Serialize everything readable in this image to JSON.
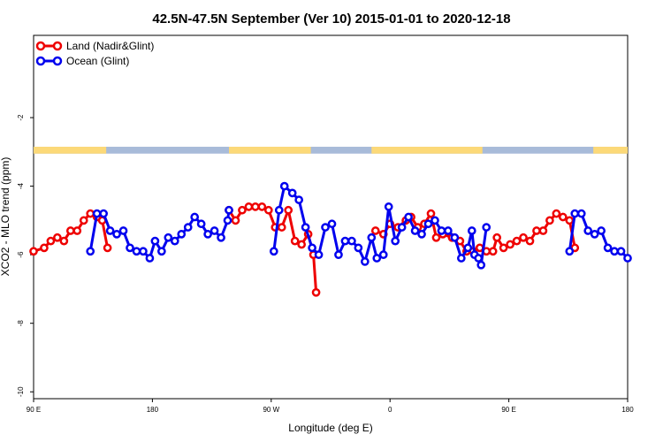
{
  "chart_data": {
    "type": "line",
    "title": "42.5N-47.5N September (Ver 10)   2015-01-01 to 2020-12-18",
    "xlabel": "Longitude (deg E)",
    "ylabel": "XCO2 - MLO trend (ppm)",
    "x_ticks": [
      {
        "value": 90,
        "label": "90 E"
      },
      {
        "value": 180,
        "label": "180"
      },
      {
        "value": 270,
        "label": "90 W"
      },
      {
        "value": 360,
        "label": "0"
      },
      {
        "value": 450,
        "label": "90 E"
      },
      {
        "value": 540,
        "label": "180"
      }
    ],
    "y_ticks": [
      {
        "value": -2,
        "label": "-2"
      },
      {
        "value": -4,
        "label": "-4"
      },
      {
        "value": -6,
        "label": "-6"
      },
      {
        "value": -8,
        "label": "-8"
      },
      {
        "value": -10,
        "label": "-10"
      }
    ],
    "xlim": [
      90,
      540
    ],
    "ylim": [
      -10.2,
      0.4
    ],
    "grid": false,
    "legend_position": "top-left",
    "land_ocean_strip": {
      "y_range": [
        -2.85,
        -3.05
      ],
      "land_color": "#fcd978",
      "ocean_color": "#a8bbd9",
      "land_segments": [
        [
          90,
          145
        ],
        [
          238,
          300
        ],
        [
          346,
          430
        ],
        [
          514,
          540
        ]
      ]
    },
    "series": [
      {
        "name": "Land (Nadir&Glint)",
        "color": "#ee0000",
        "segments": [
          [
            [
              90,
              -5.9
            ],
            [
              98,
              -5.8
            ],
            [
              103,
              -5.6
            ],
            [
              108,
              -5.5
            ],
            [
              113,
              -5.6
            ],
            [
              118,
              -5.3
            ],
            [
              123,
              -5.3
            ],
            [
              128,
              -5.0
            ],
            [
              133,
              -4.8
            ],
            [
              138,
              -4.9
            ],
            [
              142,
              -5.0
            ],
            [
              146,
              -5.8
            ]
          ],
          [
            [
              238,
              -4.7
            ],
            [
              243,
              -5.0
            ],
            [
              248,
              -4.7
            ],
            [
              253,
              -4.6
            ],
            [
              258,
              -4.6
            ],
            [
              263,
              -4.6
            ],
            [
              268,
              -4.7
            ],
            [
              273,
              -5.2
            ],
            [
              278,
              -5.2
            ],
            [
              283,
              -4.7
            ],
            [
              288,
              -5.6
            ],
            [
              293,
              -5.7
            ],
            [
              298,
              -5.4
            ],
            [
              302,
              -6.0
            ],
            [
              304,
              -7.1
            ]
          ],
          [
            [
              349,
              -5.3
            ],
            [
              355,
              -5.4
            ],
            [
              360,
              -5.1
            ],
            [
              366,
              -5.2
            ],
            [
              372,
              -5.0
            ],
            [
              376,
              -4.9
            ],
            [
              381,
              -5.2
            ],
            [
              386,
              -5.1
            ],
            [
              391,
              -4.8
            ],
            [
              395,
              -5.5
            ],
            [
              400,
              -5.4
            ],
            [
              407,
              -5.5
            ],
            [
              413,
              -5.6
            ],
            [
              418,
              -5.9
            ],
            [
              423,
              -5.9
            ],
            [
              428,
              -5.8
            ],
            [
              433,
              -5.9
            ],
            [
              438,
              -5.9
            ],
            [
              441,
              -5.5
            ],
            [
              446,
              -5.8
            ],
            [
              451,
              -5.7
            ],
            [
              456,
              -5.6
            ],
            [
              461,
              -5.5
            ],
            [
              466,
              -5.6
            ],
            [
              471,
              -5.3
            ],
            [
              476,
              -5.3
            ],
            [
              481,
              -5.0
            ],
            [
              486,
              -4.8
            ],
            [
              491,
              -4.9
            ],
            [
              496,
              -5.0
            ],
            [
              500,
              -5.8
            ]
          ]
        ]
      },
      {
        "name": "Ocean (Glint)",
        "color": "#0000ee",
        "segments": [
          [
            [
              133,
              -5.9
            ],
            [
              138,
              -4.8
            ],
            [
              143,
              -4.8
            ],
            [
              148,
              -5.3
            ],
            [
              153,
              -5.4
            ],
            [
              158,
              -5.3
            ],
            [
              163,
              -5.8
            ],
            [
              168,
              -5.9
            ],
            [
              173,
              -5.9
            ],
            [
              178,
              -6.1
            ],
            [
              182,
              -5.6
            ],
            [
              187,
              -5.9
            ],
            [
              192,
              -5.5
            ],
            [
              197,
              -5.6
            ],
            [
              202,
              -5.4
            ],
            [
              207,
              -5.2
            ],
            [
              212,
              -4.9
            ],
            [
              217,
              -5.1
            ],
            [
              222,
              -5.4
            ],
            [
              227,
              -5.3
            ],
            [
              232,
              -5.5
            ],
            [
              237,
              -5.0
            ],
            [
              238,
              -4.7
            ]
          ],
          [
            [
              272,
              -5.9
            ],
            [
              276,
              -4.7
            ],
            [
              280,
              -4.0
            ],
            [
              286,
              -4.2
            ],
            [
              291,
              -4.4
            ],
            [
              296,
              -5.2
            ],
            [
              301,
              -5.8
            ],
            [
              306,
              -6.0
            ],
            [
              311,
              -5.2
            ],
            [
              316,
              -5.1
            ],
            [
              321,
              -6.0
            ],
            [
              326,
              -5.6
            ],
            [
              331,
              -5.6
            ],
            [
              336,
              -5.8
            ],
            [
              341,
              -6.2
            ],
            [
              346,
              -5.5
            ],
            [
              350,
              -6.1
            ],
            [
              355,
              -6.0
            ],
            [
              359,
              -4.6
            ],
            [
              364,
              -5.6
            ],
            [
              369,
              -5.2
            ],
            [
              374,
              -4.9
            ],
            [
              379,
              -5.3
            ],
            [
              384,
              -5.4
            ],
            [
              389,
              -5.1
            ],
            [
              394,
              -5.0
            ],
            [
              399,
              -5.3
            ],
            [
              404,
              -5.3
            ],
            [
              409,
              -5.5
            ],
            [
              414,
              -6.1
            ],
            [
              419,
              -5.8
            ],
            [
              422,
              -5.3
            ],
            [
              424,
              -6.0
            ],
            [
              427,
              -6.1
            ],
            [
              429,
              -6.3
            ],
            [
              433,
              -5.2
            ]
          ],
          [
            [
              496,
              -5.9
            ],
            [
              500,
              -4.8
            ],
            [
              505,
              -4.8
            ],
            [
              510,
              -5.3
            ],
            [
              515,
              -5.4
            ],
            [
              520,
              -5.3
            ],
            [
              525,
              -5.8
            ],
            [
              530,
              -5.9
            ],
            [
              535,
              -5.9
            ],
            [
              540,
              -6.1
            ]
          ]
        ]
      }
    ]
  }
}
